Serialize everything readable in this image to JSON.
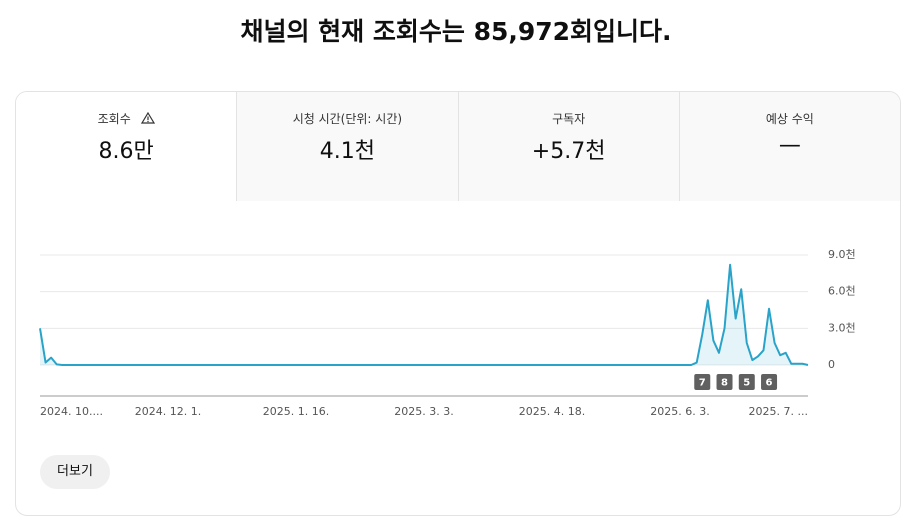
{
  "header": {
    "title": "채널의 현재 조회수는 85,972회입니다."
  },
  "metrics": [
    {
      "label": "조회수",
      "value": "8.6만"
    },
    {
      "label": "시청 시간(단위: 시간)",
      "value": "4.1천"
    },
    {
      "label": "구독자",
      "value": "+5.7천"
    },
    {
      "label": "예상 수익",
      "value": "—"
    }
  ],
  "chart_data": {
    "type": "line",
    "color": "#2aa3c9",
    "grid": true,
    "categories": [
      "2024. 10....",
      null,
      null,
      null,
      null,
      null,
      null,
      null,
      null,
      null,
      null,
      null,
      null,
      null,
      null,
      null,
      null,
      null,
      null,
      null,
      null,
      null,
      null,
      "2024. 12. 1.",
      null,
      null,
      null,
      null,
      null,
      null,
      null,
      null,
      null,
      null,
      null,
      null,
      null,
      null,
      null,
      null,
      null,
      null,
      null,
      null,
      null,
      null,
      "2025. 1. 16.",
      null,
      null,
      null,
      null,
      null,
      null,
      null,
      null,
      null,
      null,
      null,
      null,
      null,
      null,
      null,
      null,
      null,
      null,
      null,
      null,
      null,
      null,
      "2025. 3. 3.",
      null,
      null,
      null,
      null,
      null,
      null,
      null,
      null,
      null,
      null,
      null,
      null,
      null,
      null,
      null,
      null,
      null,
      null,
      null,
      null,
      null,
      null,
      "2025. 4. 18.",
      null,
      null,
      null,
      null,
      null,
      null,
      null,
      null,
      null,
      null,
      null,
      null,
      null,
      null,
      null,
      null,
      null,
      null,
      null,
      null,
      null,
      null,
      "2025. 6. 3.",
      null,
      null,
      null,
      null,
      null,
      null,
      null,
      null,
      null,
      null,
      null,
      null,
      null,
      null,
      null,
      null,
      null,
      null,
      null,
      null,
      null,
      null,
      "2025. 7. ..."
    ],
    "values": [
      3000,
      200,
      600,
      50,
      0,
      0,
      0,
      0,
      0,
      0,
      0,
      0,
      0,
      0,
      0,
      0,
      0,
      0,
      0,
      0,
      0,
      0,
      0,
      0,
      0,
      0,
      0,
      0,
      0,
      0,
      0,
      0,
      0,
      0,
      0,
      0,
      0,
      0,
      0,
      0,
      0,
      0,
      0,
      0,
      0,
      0,
      0,
      0,
      0,
      0,
      0,
      0,
      0,
      0,
      0,
      0,
      0,
      0,
      0,
      0,
      0,
      0,
      0,
      0,
      0,
      0,
      0,
      0,
      0,
      0,
      0,
      0,
      0,
      0,
      0,
      0,
      0,
      0,
      0,
      0,
      0,
      0,
      0,
      0,
      0,
      0,
      0,
      0,
      0,
      0,
      0,
      0,
      0,
      0,
      0,
      0,
      0,
      0,
      0,
      0,
      0,
      0,
      0,
      0,
      0,
      0,
      0,
      0,
      0,
      0,
      0,
      0,
      0,
      0,
      0,
      0,
      0,
      0,
      200,
      2500,
      5300,
      2000,
      1000,
      3000,
      8200,
      3800,
      6200,
      1800,
      400,
      700,
      1200,
      4600,
      1800,
      800,
      1000,
      100,
      100,
      100,
      0
    ],
    "ylim": [
      0,
      9000
    ],
    "yticks": [
      0,
      {
        "value": 3000,
        "label": "3.0천"
      },
      {
        "value": 6000,
        "label": "6.0천"
      },
      {
        "value": 9000,
        "label": "9.0천"
      }
    ],
    "annotations": [
      {
        "text": "7",
        "index": 119
      },
      {
        "text": "8",
        "index": 123
      },
      {
        "text": "5",
        "index": 127
      },
      {
        "text": "6",
        "index": 131
      }
    ]
  },
  "button": {
    "label": "더보기"
  }
}
